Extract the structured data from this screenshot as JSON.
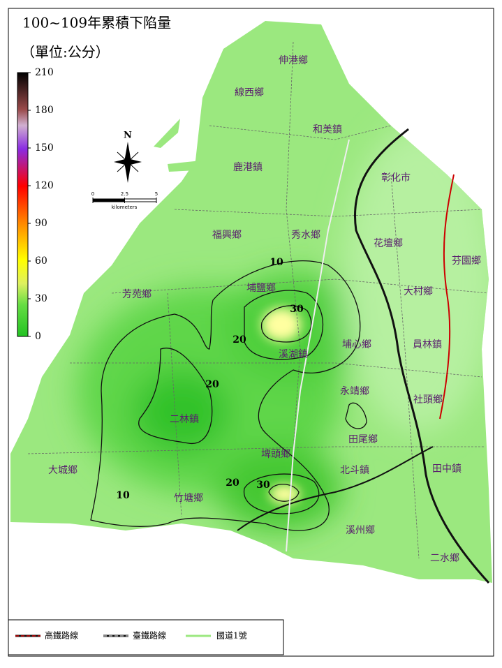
{
  "title": "100~109年累積下陷量",
  "unit": "（單位:公分）",
  "colorbar": {
    "ticks": [
      0,
      30,
      60,
      90,
      120,
      150,
      180,
      210
    ],
    "lim": [
      0,
      210
    ]
  },
  "north": "N",
  "scale_bar": {
    "ticks": [
      0,
      2.5,
      5
    ],
    "unit": "kilometers"
  },
  "contour_labels": [
    10,
    30,
    20,
    20,
    10,
    20,
    30
  ],
  "townships": [
    "伸港鄉",
    "線西鄉",
    "和美鎮",
    "鹿港鎮",
    "彰化市",
    "福興鄉",
    "秀水鄉",
    "花壇鄉",
    "芬園鄉",
    "芳苑鄉",
    "埔鹽鄉",
    "大村鄉",
    "溪湖鎮",
    "埔心鄉",
    "員林鎮",
    "永靖鄉",
    "社頭鄉",
    "二林鎮",
    "田尾鄉",
    "埤頭鄉",
    "北斗鎮",
    "田中鎮",
    "大城鄉",
    "竹塘鄉",
    "溪州鄉",
    "二水鄉"
  ],
  "legend": [
    "高鐵路線",
    "臺鐵路線",
    "國道1號"
  ]
}
